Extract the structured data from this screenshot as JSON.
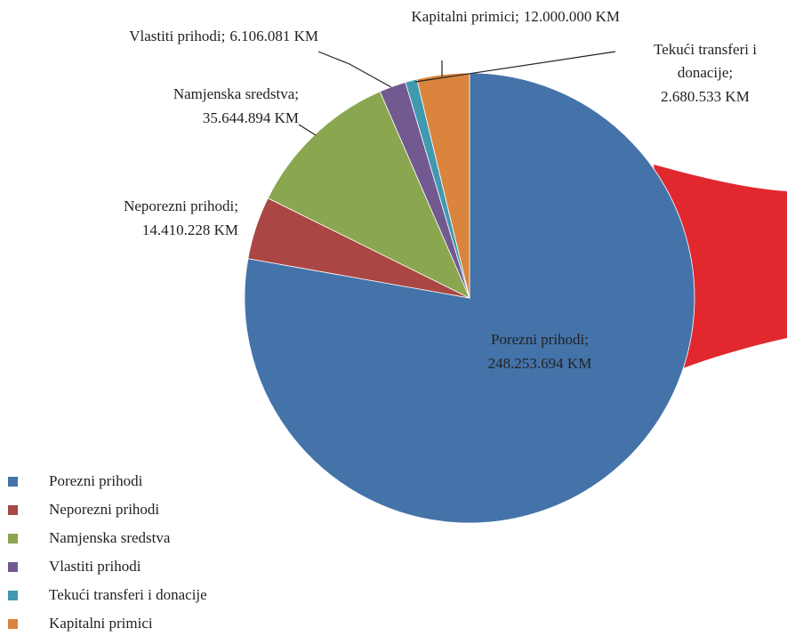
{
  "chart_data": {
    "type": "pie",
    "categories": [
      "Porezni prihodi",
      "Neporezni prihodi",
      "Namjenska sredstva",
      "Vlastiti prihodi",
      "Tekući transferi i donacije",
      "Kapitalni primici"
    ],
    "values": [
      248253694,
      14410228,
      35644894,
      6106081,
      2680533,
      12000000
    ],
    "value_labels": [
      "248.253.694 KM",
      "14.410.228 KM",
      "35.644.894 KM",
      "6.106.081 KM",
      "2.680.533 KM",
      "12.000.000 KM"
    ],
    "label_lines": [
      [
        "Porezni prihodi;"
      ],
      [
        "Neporezni prihodi;"
      ],
      [
        "Namjenska sredstva;"
      ],
      [
        "Vlastiti prihodi;"
      ],
      [
        "Tekući transferi i",
        "donacije;"
      ],
      [
        "Kapitalni primici;"
      ]
    ],
    "colors": [
      "#4473a9",
      "#aa4644",
      "#8aa64f",
      "#72598f",
      "#4199b0",
      "#db843d"
    ],
    "legend": "bottom-left"
  }
}
